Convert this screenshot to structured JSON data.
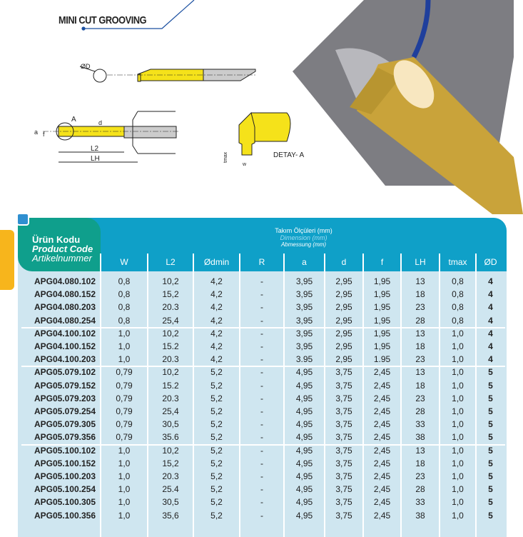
{
  "title": "MINI CUT GROOVING",
  "diagram": {
    "labels": {
      "od": "ØD",
      "a": "a",
      "f": "f",
      "d": "d",
      "A": "A",
      "l2": "L2",
      "lh": "LH",
      "tmax": "tmax",
      "w": "w",
      "detail": "DETAY- A"
    }
  },
  "table": {
    "code_header": [
      "Ürün Kodu",
      "Product Code",
      "Artikelnummer"
    ],
    "dimension_header": {
      "tr": "Takım Ölçüleri (mm)",
      "en": "Dimension (mm)",
      "de": "Abmessung (mm)"
    },
    "columns": [
      "W",
      "L2",
      "Ødmin",
      "R",
      "a",
      "d",
      "f",
      "LH",
      "tmax",
      "ØD"
    ],
    "colors": {
      "header": "#0fa0c8",
      "code_box": "#0f9f8c",
      "body": "#cfe6f0",
      "tab": "#f7b51c"
    },
    "rows": [
      [
        "APG04.080.102",
        "0,8",
        "10,2",
        "4,2",
        "-",
        "3,95",
        "2,95",
        "1,95",
        "13",
        "0,8",
        "4"
      ],
      [
        "APG04.080.152",
        "0,8",
        "15,2",
        "4,2",
        "-",
        "3,95",
        "2,95",
        "1,95",
        "18",
        "0,8",
        "4"
      ],
      [
        "APG04.080.203",
        "0,8",
        "20.3",
        "4,2",
        "-",
        "3,95",
        "2,95",
        "1,95",
        "23",
        "0,8",
        "4"
      ],
      [
        "APG04.080.254",
        "0,8",
        "25,4",
        "4,2",
        "-",
        "3,95",
        "2,95",
        "1,95",
        "28",
        "0,8",
        "4"
      ],
      [
        "APG04.100.102",
        "1,0",
        "10,2",
        "4,2",
        "-",
        "3,95",
        "2,95",
        "1,95",
        "13",
        "1,0",
        "4"
      ],
      [
        "APG04.100.152",
        "1,0",
        "15.2",
        "4,2",
        "-",
        "3,95",
        "2,95",
        "1,95",
        "18",
        "1,0",
        "4"
      ],
      [
        "APG04.100.203",
        "1,0",
        "20.3",
        "4,2",
        "-",
        "3.95",
        "2,95",
        "1.95",
        "23",
        "1,0",
        "4"
      ],
      [
        "APG05.079.102",
        "0,79",
        "10,2",
        "5,2",
        "-",
        "4,95",
        "3,75",
        "2,45",
        "13",
        "1,0",
        "5"
      ],
      [
        "APG05.079.152",
        "0,79",
        "15.2",
        "5,2",
        "-",
        "4,95",
        "3,75",
        "2,45",
        "18",
        "1,0",
        "5"
      ],
      [
        "APG05.079.203",
        "0,79",
        "20.3",
        "5,2",
        "-",
        "4,95",
        "3,75",
        "2,45",
        "23",
        "1,0",
        "5"
      ],
      [
        "APG05.079.254",
        "0,79",
        "25,4",
        "5,2",
        "-",
        "4,95",
        "3,75",
        "2,45",
        "28",
        "1,0",
        "5"
      ],
      [
        "APG05.079.305",
        "0,79",
        "30,5",
        "5,2",
        "-",
        "4,95",
        "3,75",
        "2,45",
        "33",
        "1,0",
        "5"
      ],
      [
        "APG05.079.356",
        "0,79",
        "35.6",
        "5,2",
        "-",
        "4,95",
        "3,75",
        "2,45",
        "38",
        "1,0",
        "5"
      ],
      [
        "APG05.100.102",
        "1,0",
        "10,2",
        "5,2",
        "-",
        "4,95",
        "3,75",
        "2,45",
        "13",
        "1,0",
        "5"
      ],
      [
        "APG05.100.152",
        "1,0",
        "15,2",
        "5,2",
        "-",
        "4,95",
        "3,75",
        "2,45",
        "18",
        "1,0",
        "5"
      ],
      [
        "APG05.100.203",
        "1,0",
        "20.3",
        "5,2",
        "-",
        "4,95",
        "3,75",
        "2,45",
        "23",
        "1,0",
        "5"
      ],
      [
        "APG05.100.254",
        "1,0",
        "25.4",
        "5,2",
        "-",
        "4,95",
        "3,75",
        "2,45",
        "28",
        "1,0",
        "5"
      ],
      [
        "APG05.100.305",
        "1,0",
        "30,5",
        "5,2",
        "-",
        "4,95",
        "3,75",
        "2,45",
        "33",
        "1,0",
        "5"
      ],
      [
        "APG05.100.356",
        "1,0",
        "35,6",
        "5,2",
        "-",
        "4,95",
        "3,75",
        "2,45",
        "38",
        "1,0",
        "5"
      ]
    ]
  }
}
